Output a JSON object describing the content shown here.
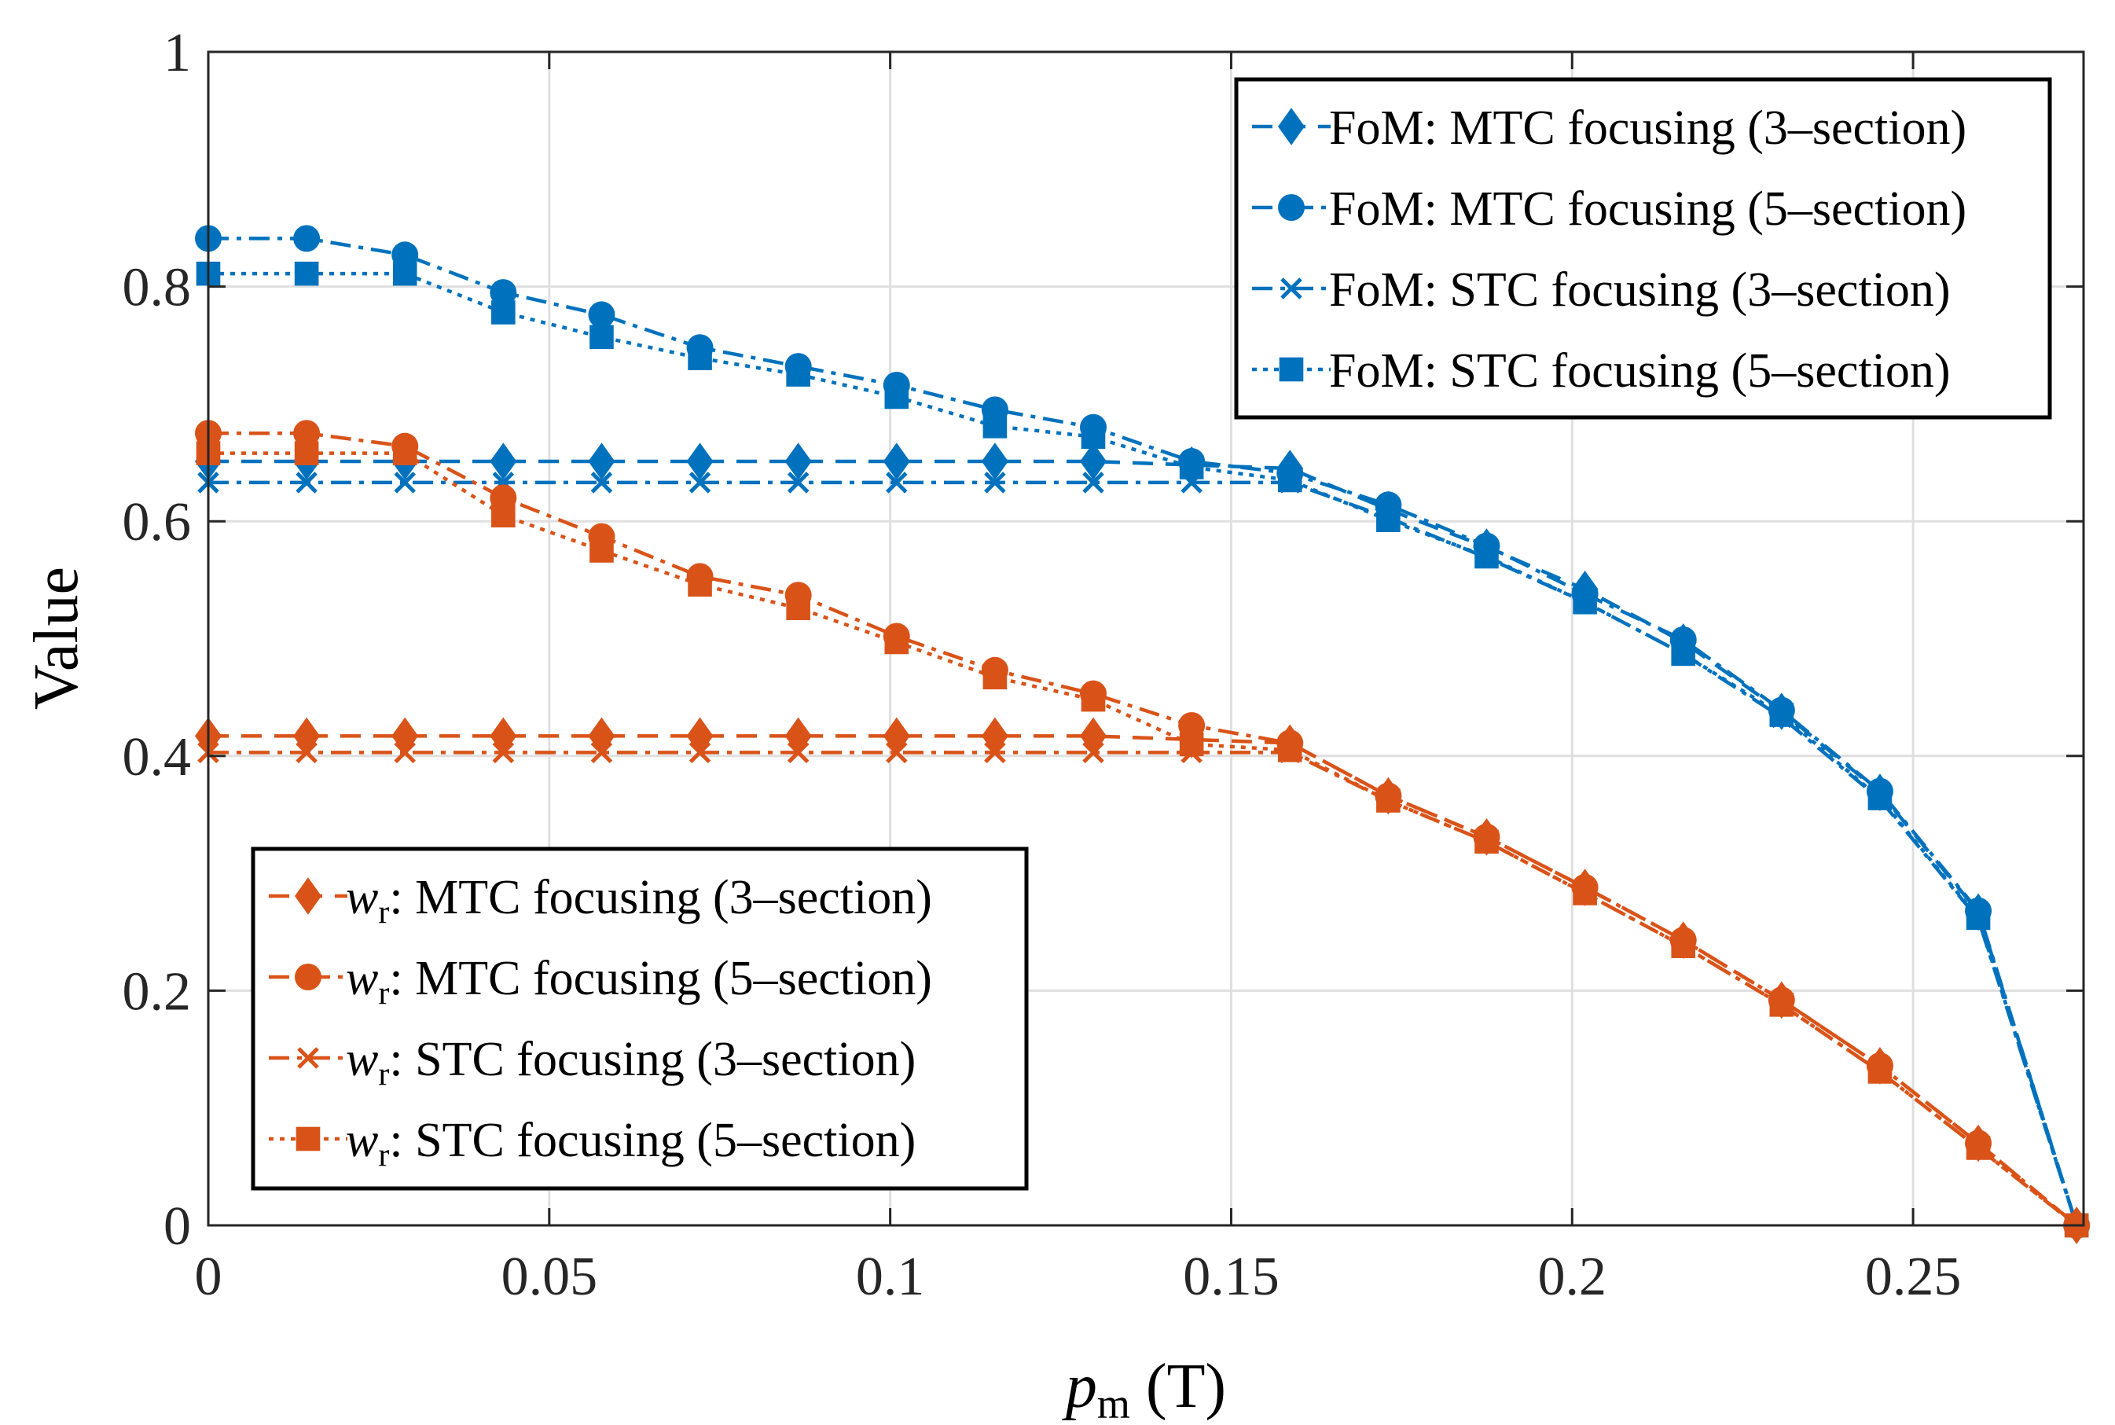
{
  "chart_data": {
    "type": "line",
    "title": "",
    "xlabel": "p",
    "xlabel_sub": "m",
    "xlabel_unit": " (T)",
    "ylabel": "Value",
    "xlim": [
      0,
      0.275
    ],
    "ylim": [
      0,
      1
    ],
    "grid": true,
    "xticks": [
      0,
      0.05,
      0.1,
      0.15,
      0.2,
      0.25
    ],
    "xtick_labels": [
      "0",
      "0.05",
      "0.1",
      "0.15",
      "0.2",
      "0.25"
    ],
    "yticks": [
      0,
      0.2,
      0.4,
      0.6,
      0.8,
      1
    ],
    "ytick_labels": [
      "0",
      "0.2",
      "0.4",
      "0.6",
      "0.8",
      "1"
    ],
    "x": [
      0,
      0.01442,
      0.02884,
      0.04326,
      0.05768,
      0.0721,
      0.08652,
      0.10094,
      0.11536,
      0.12978,
      0.1442,
      0.15862,
      0.17304,
      0.18746,
      0.20188,
      0.2163,
      0.23072,
      0.24514,
      0.25956,
      0.27398
    ],
    "colors": {
      "fom": "#0072BD",
      "wr": "#D95319"
    },
    "series": [
      {
        "name": "FoM: MTC focusing (3–section)",
        "prefix": "FoM",
        "label": ": MTC focusing (3–section)",
        "group": "fom",
        "marker": "diamond",
        "dash": "dashed",
        "legend": "top-right",
        "values": [
          0.651,
          0.651,
          0.651,
          0.651,
          0.651,
          0.651,
          0.651,
          0.651,
          0.651,
          0.651,
          0.648,
          0.645,
          0.61,
          0.578,
          0.542,
          0.497,
          0.438,
          0.369,
          0.267,
          0
        ]
      },
      {
        "name": "FoM: MTC focusing (5–section)",
        "prefix": "FoM",
        "label": ": MTC focusing (5–section)",
        "group": "fom",
        "marker": "circle",
        "dash": "dashdot",
        "legend": "top-right",
        "values": [
          0.841,
          0.841,
          0.827,
          0.795,
          0.776,
          0.748,
          0.732,
          0.716,
          0.695,
          0.68,
          0.651,
          0.641,
          0.614,
          0.579,
          0.538,
          0.499,
          0.439,
          0.37,
          0.268,
          0
        ]
      },
      {
        "name": "FoM: STC focusing (3–section)",
        "prefix": "FoM",
        "label": ": STC focusing (3–section)",
        "group": "fom",
        "marker": "x",
        "dash": "dashdot",
        "legend": "top-right",
        "values": [
          0.633,
          0.633,
          0.633,
          0.633,
          0.633,
          0.633,
          0.633,
          0.633,
          0.633,
          0.633,
          0.633,
          0.633,
          0.603,
          0.569,
          0.531,
          0.487,
          0.433,
          0.363,
          0.261,
          0
        ]
      },
      {
        "name": "FoM: STC focusing (5–section)",
        "prefix": "FoM",
        "label": ": STC focusing (5–section)",
        "group": "fom",
        "marker": "square",
        "dash": "dotted",
        "legend": "top-right",
        "values": [
          0.811,
          0.811,
          0.811,
          0.778,
          0.757,
          0.739,
          0.725,
          0.706,
          0.681,
          0.672,
          0.646,
          0.635,
          0.601,
          0.57,
          0.531,
          0.487,
          0.435,
          0.364,
          0.262,
          0
        ]
      },
      {
        "name": "wr: MTC focusing (3–section)",
        "prefix": "w",
        "prefix_sub": "r",
        "label": ": MTC focusing (3–section)",
        "group": "wr",
        "marker": "diamond",
        "dash": "dashed",
        "legend": "bottom-left",
        "values": [
          0.417,
          0.417,
          0.417,
          0.417,
          0.417,
          0.417,
          0.417,
          0.417,
          0.417,
          0.417,
          0.414,
          0.411,
          0.366,
          0.331,
          0.288,
          0.243,
          0.192,
          0.136,
          0.07,
          0
        ]
      },
      {
        "name": "wr: MTC focusing (5–section)",
        "prefix": "w",
        "prefix_sub": "r",
        "label": ": MTC focusing (5–section)",
        "group": "wr",
        "marker": "circle",
        "dash": "dashdot",
        "legend": "bottom-left",
        "values": [
          0.675,
          0.675,
          0.664,
          0.62,
          0.587,
          0.553,
          0.537,
          0.502,
          0.473,
          0.453,
          0.426,
          0.411,
          0.366,
          0.331,
          0.288,
          0.243,
          0.192,
          0.136,
          0.07,
          0
        ]
      },
      {
        "name": "wr: STC focusing (3–section)",
        "prefix": "w",
        "prefix_sub": "r",
        "label": ": STC focusing (3–section)",
        "group": "wr",
        "marker": "x",
        "dash": "dashdot",
        "legend": "bottom-left",
        "values": [
          0.403,
          0.403,
          0.403,
          0.403,
          0.403,
          0.403,
          0.403,
          0.403,
          0.403,
          0.403,
          0.403,
          0.403,
          0.362,
          0.327,
          0.283,
          0.238,
          0.188,
          0.131,
          0.066,
          0
        ]
      },
      {
        "name": "wr: STC focusing (5–section)",
        "prefix": "w",
        "prefix_sub": "r",
        "label": ": STC focusing (5–section)",
        "group": "wr",
        "marker": "square",
        "dash": "dotted",
        "legend": "bottom-left",
        "values": [
          0.658,
          0.658,
          0.658,
          0.605,
          0.575,
          0.546,
          0.526,
          0.497,
          0.467,
          0.448,
          0.41,
          0.405,
          0.362,
          0.327,
          0.283,
          0.238,
          0.188,
          0.131,
          0.066,
          0
        ]
      }
    ]
  }
}
